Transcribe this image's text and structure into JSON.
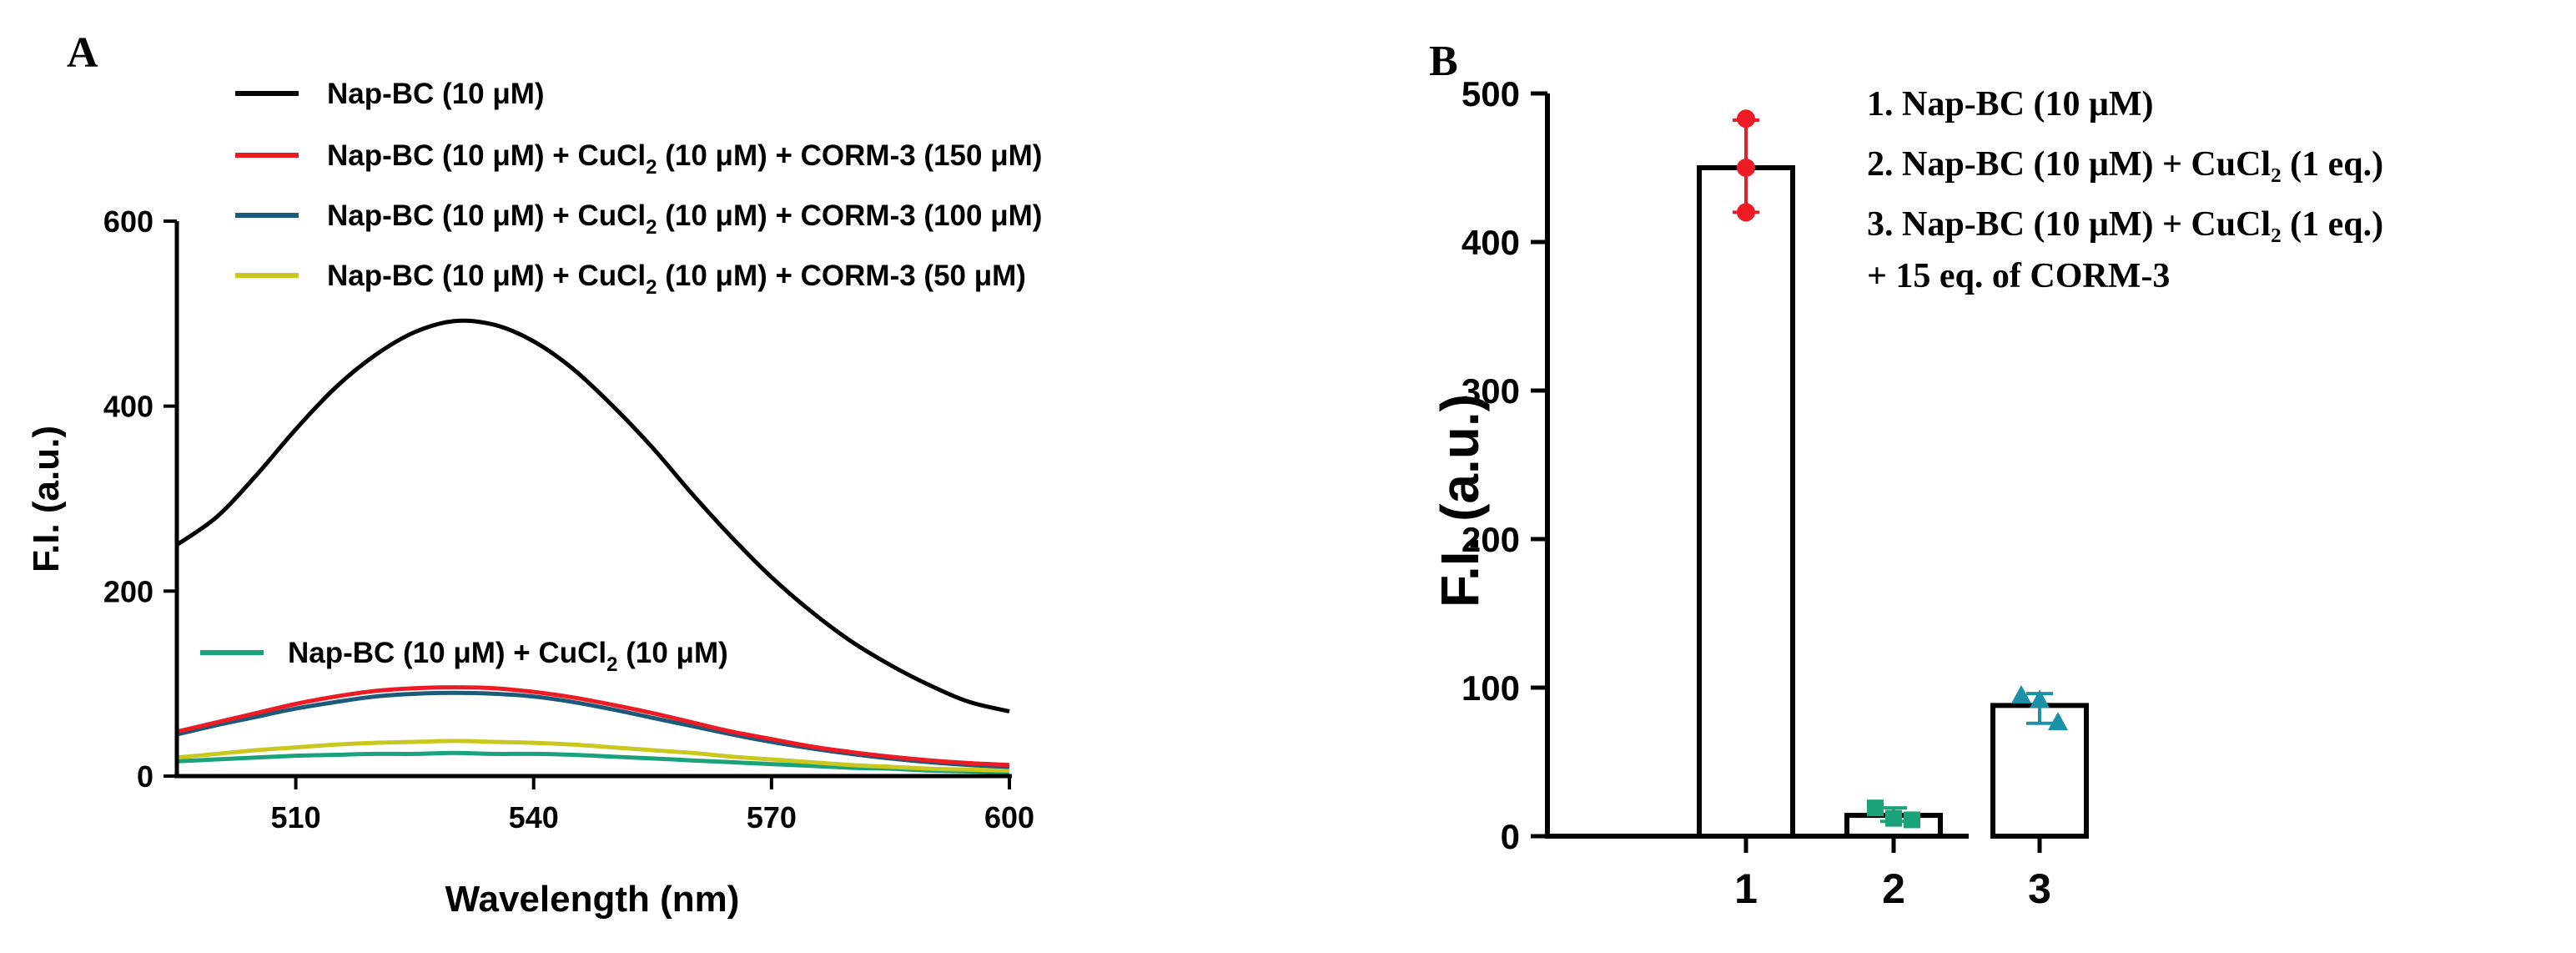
{
  "chart_data": [
    {
      "panel_label": "A",
      "type": "line",
      "xlabel": "Wavelength (nm)",
      "ylabel": "F.I. (a.u.)",
      "xlim": [
        495,
        600
      ],
      "ylim": [
        0,
        600
      ],
      "x_ticks": [
        "510",
        "540",
        "570",
        "600"
      ],
      "y_ticks": [
        "0",
        "200",
        "400",
        "600"
      ],
      "x_tick_values": [
        510,
        540,
        570,
        600
      ],
      "y_tick_values": [
        0,
        200,
        400,
        600
      ],
      "x": [
        495,
        500,
        505,
        510,
        515,
        520,
        525,
        530,
        535,
        540,
        545,
        550,
        555,
        560,
        565,
        570,
        575,
        580,
        585,
        590,
        595,
        600
      ],
      "series": [
        {
          "name": "Nap-BC (10 μM)",
          "color": "#000000",
          "values": [
            250,
            280,
            325,
            375,
            420,
            455,
            480,
            492,
            488,
            470,
            440,
            400,
            355,
            305,
            258,
            215,
            178,
            146,
            120,
            98,
            80,
            70
          ]
        },
        {
          "name": "Nap-BC (10 μM) + CuCl2 (10 μM) + CORM-3 (150 μM)",
          "color": "#ed1c24",
          "values": [
            48,
            58,
            68,
            78,
            86,
            92,
            95,
            96,
            95,
            91,
            85,
            77,
            68,
            58,
            48,
            40,
            32,
            26,
            21,
            17,
            14,
            12
          ]
        },
        {
          "name": "Nap-BC (10 μM) + CuCl2 (10 μM) + CORM-3 (100 μM)",
          "color": "#1b5a7a",
          "values": [
            45,
            55,
            64,
            73,
            80,
            86,
            89,
            90,
            89,
            86,
            80,
            72,
            63,
            54,
            45,
            37,
            30,
            24,
            19,
            15,
            12,
            10
          ]
        },
        {
          "name": "Nap-BC (10 μM) + CuCl2 (10 μM) + CORM-3 (50 μM)",
          "color": "#c8c81e",
          "values": [
            20,
            24,
            28,
            31,
            34,
            36,
            37,
            38,
            37,
            36,
            34,
            31,
            28,
            25,
            21,
            18,
            15,
            12,
            10,
            8,
            7,
            6
          ]
        },
        {
          "name": "Nap-BC (10 μM) + CuCl2 (10 μM)",
          "color": "#1aa37a",
          "values": [
            16,
            18,
            20,
            22,
            23,
            24,
            24,
            25,
            24,
            24,
            23,
            21,
            19,
            17,
            15,
            13,
            11,
            9,
            8,
            6,
            5,
            4
          ]
        }
      ],
      "legend": [
        {
          "prefix": "Nap-BC (10 μM)",
          "sub": "",
          "suffix": ""
        },
        {
          "prefix": "Nap-BC (10 μM) + CuCl",
          "sub": "2",
          "suffix": " (10 μM) + CORM-3 (150 μM)"
        },
        {
          "prefix": "Nap-BC (10 μM) + CuCl",
          "sub": "2",
          "suffix": " (10 μM) + CORM-3 (100 μM)"
        },
        {
          "prefix": "Nap-BC (10 μM) + CuCl",
          "sub": "2",
          "suffix": " (10 μM) + CORM-3 (50 μM)"
        },
        {
          "prefix": "Nap-BC (10 μM) + CuCl",
          "sub": "2",
          "suffix": " (10 μM)"
        }
      ]
    },
    {
      "panel_label": "B",
      "type": "bar",
      "xlabel": "",
      "ylabel": "F.I. (a.u.)",
      "ylim": [
        0,
        500
      ],
      "y_ticks": [
        "0",
        "100",
        "200",
        "300",
        "400",
        "500"
      ],
      "y_tick_values": [
        0,
        100,
        200,
        300,
        400,
        500
      ],
      "categories": [
        "1",
        "2",
        "3"
      ],
      "values": [
        450,
        14,
        88
      ],
      "errors": [
        [
          420,
          482
        ],
        [
          10,
          19
        ],
        [
          76,
          96
        ]
      ],
      "points": [
        [
          483,
          450,
          420
        ],
        [
          19,
          12,
          11
        ],
        [
          95,
          92,
          77
        ]
      ],
      "marker_shapes": [
        "circle",
        "square",
        "triangle"
      ],
      "marker_colors": [
        "#ed1c24",
        "#1aa37a",
        "#1b91a8"
      ],
      "legend_lines": [
        "1. Nap-BC (10 μM)",
        "2. Nap-BC (10 μM) + CuCl₂ (1 eq.)",
        "3. Nap-BC (10 μM) + CuCl₂ (1 eq.)",
        "+ 15 eq. of CORM-3"
      ]
    }
  ]
}
